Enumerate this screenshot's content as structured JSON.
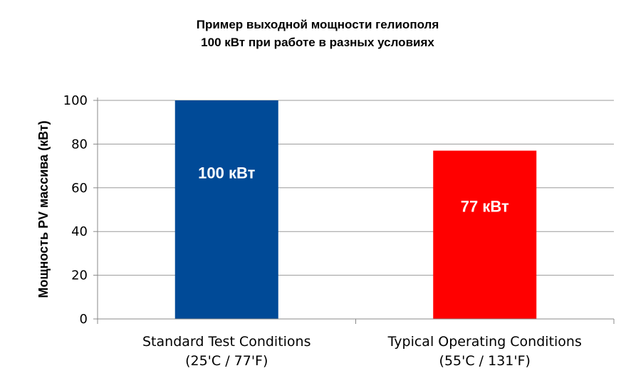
{
  "chart_data": {
    "type": "bar",
    "title": [
      "Пример выходной мощности гелиополя",
      "100 кВт при работе в разных условиях"
    ],
    "ylabel": "Мощность PV массива (кВт)",
    "xlabel": "",
    "ylim": [
      0,
      100
    ],
    "yticks": [
      0,
      20,
      40,
      60,
      80,
      100
    ],
    "grid": true,
    "categories": [
      [
        "Standard Test Conditions",
        "(25'C / 77'F)"
      ],
      [
        "Typical Operating Conditions",
        "(55'C / 131'F)"
      ]
    ],
    "values": [
      100,
      77
    ],
    "data_labels": [
      "100 кВт",
      "77 кВт"
    ],
    "colors": [
      "#004a97",
      "#ff0000"
    ]
  }
}
